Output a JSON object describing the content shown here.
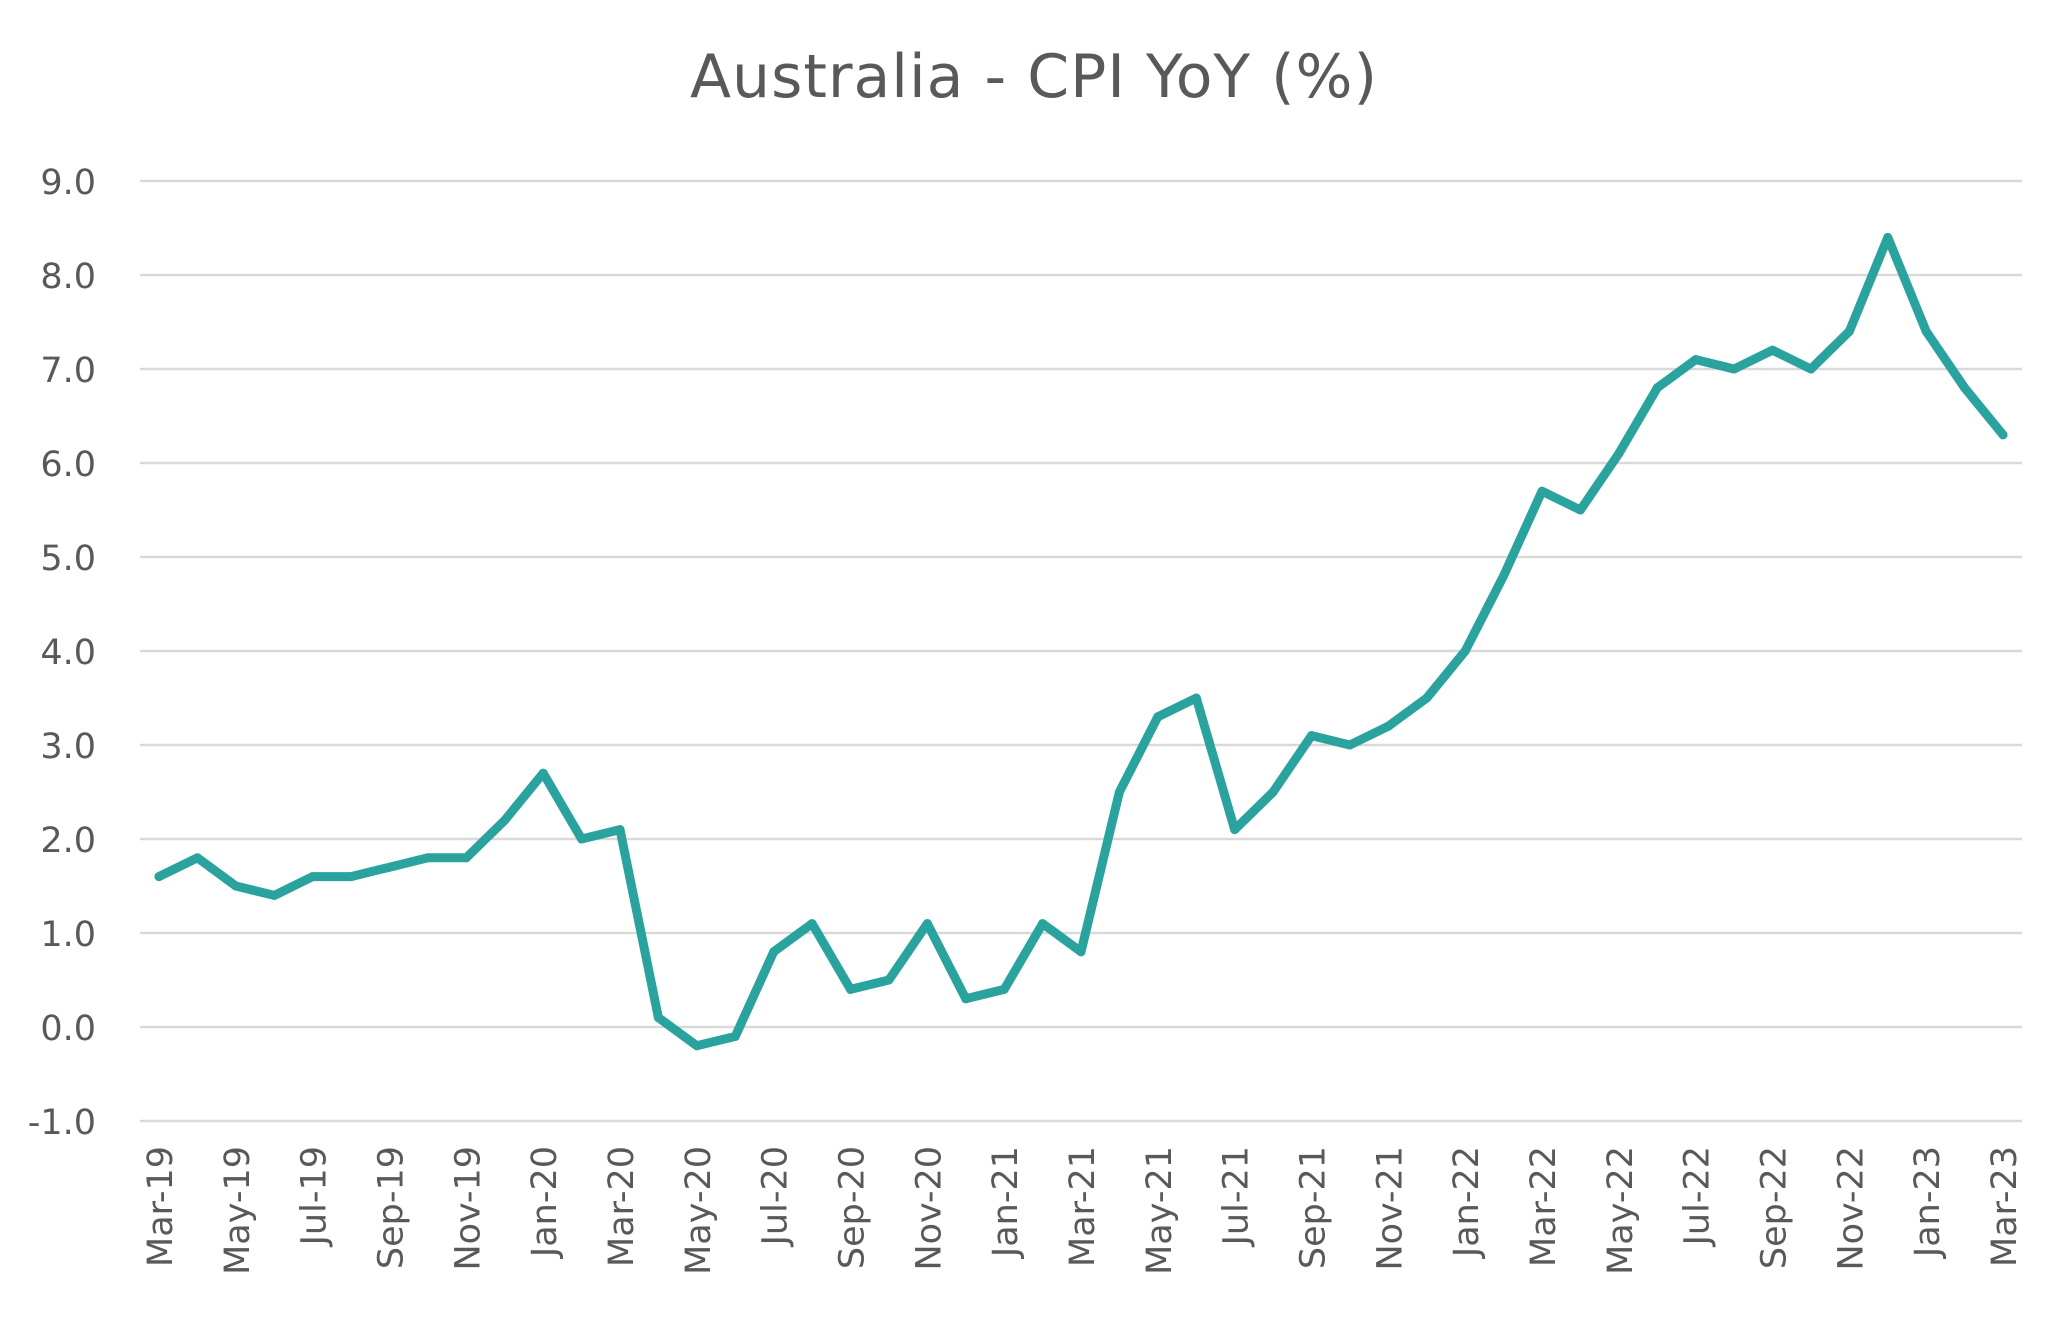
{
  "chart_data": {
    "type": "line",
    "title": "Australia - CPI YoY (%)",
    "xlabel": "",
    "ylabel": "",
    "ylim": [
      -1.0,
      9.0
    ],
    "y_ticks": [
      "9.0",
      "8.0",
      "7.0",
      "6.0",
      "5.0",
      "4.0",
      "3.0",
      "2.0",
      "1.0",
      "0.0",
      "-1.0"
    ],
    "y_tick_values": [
      9,
      8,
      7,
      6,
      5,
      4,
      3,
      2,
      1,
      0,
      -1
    ],
    "grid": true,
    "x": [
      "Mar-19",
      "Apr-19",
      "May-19",
      "Jun-19",
      "Jul-19",
      "Aug-19",
      "Sep-19",
      "Oct-19",
      "Nov-19",
      "Dec-19",
      "Jan-20",
      "Feb-20",
      "Mar-20",
      "Apr-20",
      "May-20",
      "Jun-20",
      "Jul-20",
      "Aug-20",
      "Sep-20",
      "Oct-20",
      "Nov-20",
      "Dec-20",
      "Jan-21",
      "Feb-21",
      "Mar-21",
      "Apr-21",
      "May-21",
      "Jun-21",
      "Jul-21",
      "Aug-21",
      "Sep-21",
      "Oct-21",
      "Nov-21",
      "Dec-21",
      "Jan-22",
      "Feb-22",
      "Mar-22",
      "Apr-22",
      "May-22",
      "Jun-22",
      "Jul-22",
      "Aug-22",
      "Sep-22",
      "Oct-22",
      "Nov-22",
      "Dec-22",
      "Jan-23",
      "Feb-23",
      "Mar-23"
    ],
    "x_tick_labels": [
      "Mar-19",
      "May-19",
      "Jul-19",
      "Sep-19",
      "Nov-19",
      "Jan-20",
      "Mar-20",
      "May-20",
      "Jul-20",
      "Sep-20",
      "Nov-20",
      "Jan-21",
      "Mar-21",
      "May-21",
      "Jul-21",
      "Sep-21",
      "Nov-21",
      "Jan-22",
      "Mar-22",
      "May-22",
      "Jul-22",
      "Sep-22",
      "Nov-22",
      "Jan-23",
      "Mar-23"
    ],
    "series": [
      {
        "name": "Australia - CPI YoY (%)",
        "color": "#2aa39e",
        "values": [
          1.6,
          1.8,
          1.5,
          1.4,
          1.6,
          1.6,
          1.7,
          1.8,
          1.8,
          2.2,
          2.7,
          2.0,
          2.1,
          0.1,
          -0.2,
          -0.1,
          0.8,
          1.1,
          0.4,
          0.5,
          1.1,
          0.3,
          0.4,
          1.1,
          0.8,
          2.5,
          3.3,
          3.5,
          2.1,
          2.5,
          3.1,
          3.0,
          3.2,
          3.5,
          4.0,
          4.8,
          5.7,
          5.5,
          6.1,
          6.8,
          7.1,
          7.0,
          7.2,
          7.0,
          7.4,
          8.4,
          7.4,
          6.8,
          6.3
        ]
      }
    ],
    "gridline_color": "#d9d9d9",
    "text_color": "#595959"
  }
}
